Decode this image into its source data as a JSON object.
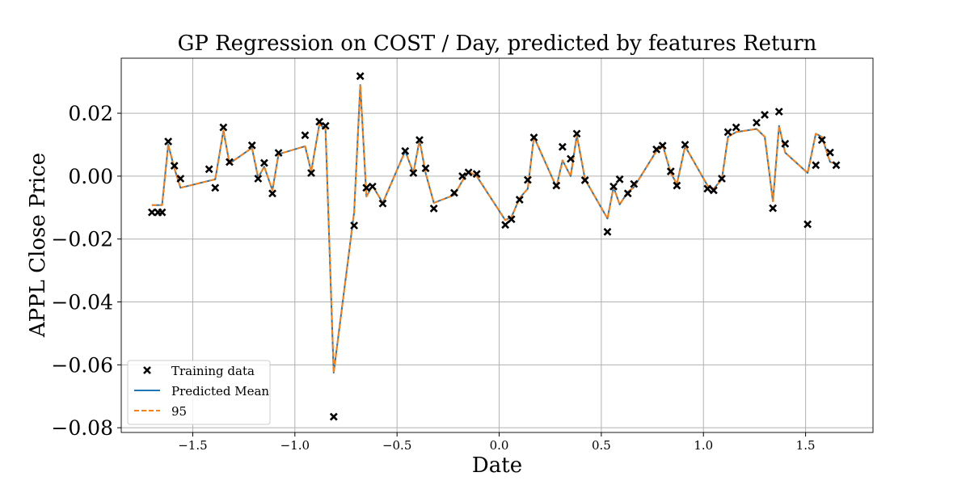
{
  "chart_data": {
    "type": "line",
    "title": "GP Regression on COST / Day, predicted by features Return",
    "xlabel": "Date",
    "ylabel": "APPL Close Price",
    "xlim": [
      -1.85,
      1.83
    ],
    "ylim": [
      -0.0815,
      0.0375
    ],
    "xticks": [
      -1.5,
      -1.0,
      -0.5,
      0.0,
      0.5,
      1.0,
      1.5
    ],
    "xtick_labels": [
      "−1.5",
      "−1.0",
      "−0.5",
      "0.0",
      "0.5",
      "1.0",
      "1.5"
    ],
    "yticks": [
      -0.08,
      -0.06,
      -0.04,
      -0.02,
      0.0,
      0.02
    ],
    "ytick_labels": [
      "−0.08",
      "−0.06",
      "−0.04",
      "−0.02",
      "0.00",
      "0.02"
    ],
    "grid": true,
    "legend_position": "lower-left",
    "colors": {
      "training": "#000000",
      "mean": "#1f77b4",
      "band": "#ff7f0e"
    },
    "series": [
      {
        "name": "Training data",
        "style": "scatter-x",
        "x": [
          -1.7,
          -1.67,
          -1.65,
          -1.62,
          -1.59,
          -1.56,
          -1.42,
          -1.39,
          -1.35,
          -1.32,
          -1.21,
          -1.18,
          -1.15,
          -1.11,
          -1.08,
          -0.95,
          -0.92,
          -0.88,
          -0.85,
          -0.71,
          -0.81,
          -0.68,
          -0.65,
          -0.62,
          -0.57,
          -0.46,
          -0.42,
          -0.39,
          -0.36,
          -0.32,
          -0.22,
          -0.18,
          -0.15,
          -0.11,
          0.03,
          0.06,
          0.1,
          0.14,
          0.17,
          0.28,
          0.31,
          0.35,
          0.38,
          0.42,
          0.53,
          0.56,
          0.59,
          0.63,
          0.66,
          0.77,
          0.8,
          0.84,
          0.87,
          0.91,
          1.02,
          1.05,
          1.09,
          1.12,
          1.16,
          1.26,
          1.3,
          1.34,
          1.37,
          1.4,
          1.51,
          1.55,
          1.58,
          1.62,
          1.65
        ],
        "y": [
          -0.0115,
          -0.0115,
          -0.0115,
          0.011,
          0.0033,
          -0.0008,
          0.0022,
          -0.0037,
          0.0155,
          0.0045,
          0.0098,
          -0.0008,
          0.0042,
          -0.0055,
          0.0074,
          0.013,
          0.001,
          0.0173,
          0.016,
          -0.0157,
          -0.0765,
          0.0318,
          -0.0037,
          -0.0033,
          -0.0087,
          0.008,
          0.001,
          0.0115,
          0.0025,
          -0.0103,
          -0.0053,
          0.0,
          0.0012,
          0.0007,
          -0.0155,
          -0.0137,
          -0.0075,
          -0.0012,
          0.0123,
          -0.003,
          0.0093,
          0.0055,
          0.0135,
          -0.0013,
          -0.0177,
          -0.0033,
          -0.001,
          -0.0055,
          -0.0025,
          0.0085,
          0.0097,
          0.0015,
          -0.003,
          0.01,
          -0.004,
          -0.0045,
          -0.0008,
          0.014,
          0.0155,
          0.017,
          0.0195,
          -0.0102,
          0.0205,
          0.0103,
          -0.0153,
          0.0035,
          0.0115,
          0.0075,
          0.0035
        ]
      },
      {
        "name": "Predicted Mean",
        "style": "line",
        "x": [
          -1.7,
          -1.65,
          -1.62,
          -1.59,
          -1.56,
          -1.39,
          -1.35,
          -1.32,
          -1.21,
          -1.18,
          -1.15,
          -1.11,
          -1.08,
          -0.95,
          -0.92,
          -0.88,
          -0.85,
          -0.81,
          -0.71,
          -0.68,
          -0.65,
          -0.62,
          -0.57,
          -0.46,
          -0.42,
          -0.39,
          -0.36,
          -0.32,
          -0.22,
          -0.18,
          -0.15,
          -0.11,
          0.03,
          0.06,
          0.1,
          0.14,
          0.17,
          0.28,
          0.31,
          0.35,
          0.38,
          0.42,
          0.53,
          0.56,
          0.59,
          0.63,
          0.66,
          0.77,
          0.8,
          0.84,
          0.87,
          0.91,
          1.02,
          1.05,
          1.09,
          1.12,
          1.16,
          1.26,
          1.3,
          1.34,
          1.37,
          1.4,
          1.51,
          1.55,
          1.58,
          1.62,
          1.65
        ],
        "y": [
          -0.0092,
          -0.0092,
          0.01,
          0.0025,
          -0.0037,
          -0.001,
          0.0145,
          0.004,
          0.009,
          -0.0005,
          0.003,
          -0.0045,
          0.007,
          0.0095,
          0.0015,
          0.0165,
          0.015,
          -0.0625,
          -0.0115,
          0.029,
          -0.0065,
          -0.003,
          -0.0085,
          0.008,
          0.001,
          0.0115,
          0.001,
          -0.0085,
          -0.006,
          -0.0015,
          0.0015,
          0.0,
          -0.014,
          -0.013,
          -0.007,
          -0.004,
          0.0125,
          -0.0035,
          0.005,
          0.0,
          0.013,
          -0.001,
          -0.0135,
          -0.0035,
          -0.009,
          -0.005,
          -0.0035,
          0.008,
          0.01,
          0.001,
          -0.0025,
          0.0095,
          -0.003,
          -0.004,
          -0.001,
          0.0125,
          0.014,
          0.015,
          0.0125,
          -0.008,
          0.016,
          0.0075,
          0.001,
          0.0135,
          0.0125,
          0.0045,
          0.004
        ]
      },
      {
        "name": "95",
        "style": "dashed-line",
        "x": [
          -1.7,
          -1.65,
          -1.62,
          -1.59,
          -1.56,
          -1.39,
          -1.35,
          -1.32,
          -1.21,
          -1.18,
          -1.15,
          -1.11,
          -1.08,
          -0.95,
          -0.92,
          -0.88,
          -0.85,
          -0.81,
          -0.71,
          -0.68,
          -0.65,
          -0.62,
          -0.57,
          -0.46,
          -0.42,
          -0.39,
          -0.36,
          -0.32,
          -0.22,
          -0.18,
          -0.15,
          -0.11,
          0.03,
          0.06,
          0.1,
          0.14,
          0.17,
          0.28,
          0.31,
          0.35,
          0.38,
          0.42,
          0.53,
          0.56,
          0.59,
          0.63,
          0.66,
          0.77,
          0.8,
          0.84,
          0.87,
          0.91,
          1.02,
          1.05,
          1.09,
          1.12,
          1.16,
          1.26,
          1.3,
          1.34,
          1.37,
          1.4,
          1.51,
          1.55,
          1.58,
          1.62,
          1.65
        ],
        "y": [
          -0.0092,
          -0.0092,
          0.01,
          0.0025,
          -0.0037,
          -0.001,
          0.0145,
          0.004,
          0.009,
          -0.0005,
          0.003,
          -0.0045,
          0.007,
          0.0095,
          0.0015,
          0.0165,
          0.015,
          -0.0625,
          -0.0115,
          0.029,
          -0.0065,
          -0.003,
          -0.0085,
          0.008,
          0.001,
          0.0115,
          0.001,
          -0.0085,
          -0.006,
          -0.0015,
          0.0015,
          0.0,
          -0.014,
          -0.013,
          -0.007,
          -0.004,
          0.0125,
          -0.0035,
          0.005,
          0.0,
          0.013,
          -0.001,
          -0.0135,
          -0.0035,
          -0.009,
          -0.005,
          -0.0035,
          0.008,
          0.01,
          0.001,
          -0.0025,
          0.0095,
          -0.003,
          -0.004,
          -0.001,
          0.0125,
          0.014,
          0.015,
          0.0125,
          -0.008,
          0.016,
          0.0075,
          0.001,
          0.0135,
          0.0125,
          0.0045,
          0.004
        ]
      }
    ]
  }
}
